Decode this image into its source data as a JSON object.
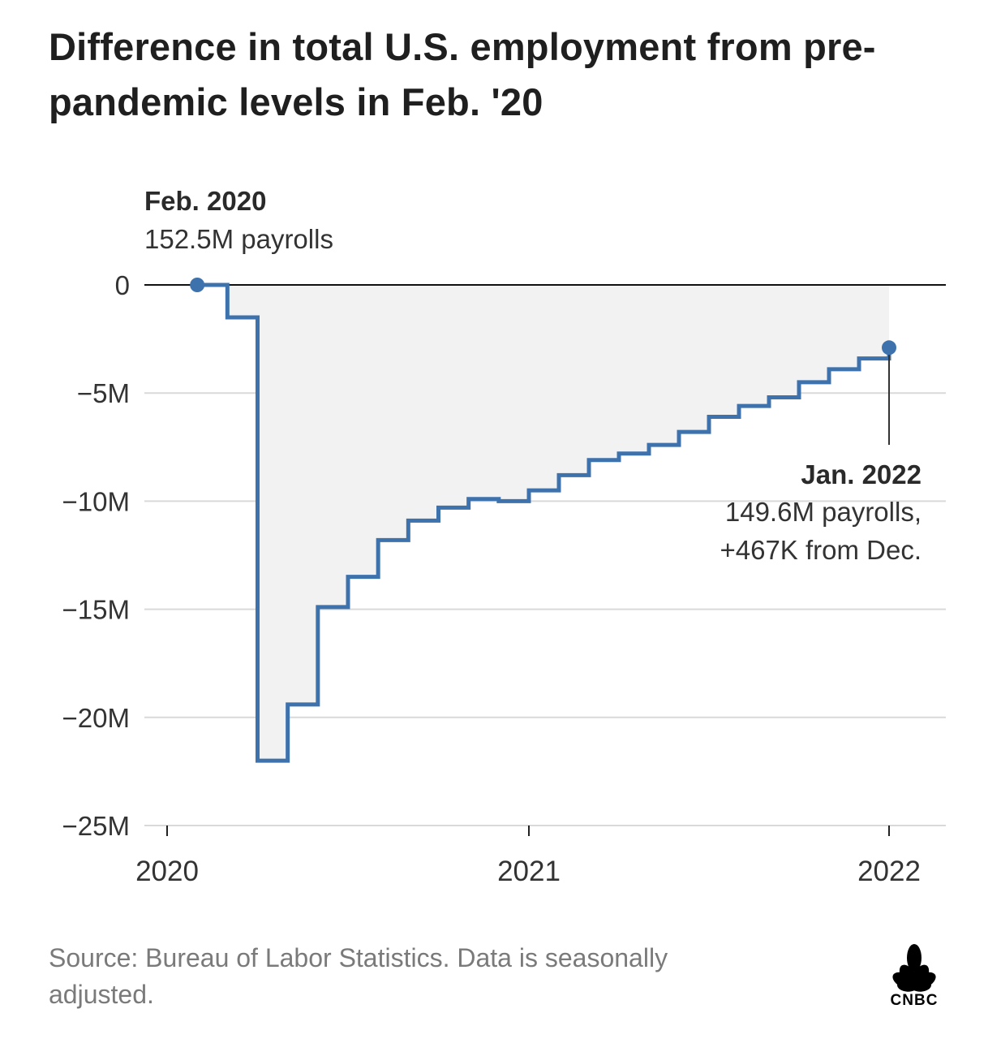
{
  "chart_data": {
    "type": "line",
    "title": "Difference in total U.S. employment from pre-pandemic levels in Feb. '20",
    "step": true,
    "x_ticks": [
      "2020",
      "2021",
      "2022"
    ],
    "y_ticks": [
      0,
      -5,
      -10,
      -15,
      -20,
      -25
    ],
    "y_tick_labels": [
      "0",
      "−5M",
      "−10M",
      "−15M",
      "−20M",
      "−25M"
    ],
    "ylim": [
      -25,
      0
    ],
    "x_unit": "months since Jan 2020",
    "grid": true,
    "series": [
      {
        "x": [
          "2020-02",
          "2020-03",
          "2020-04",
          "2020-05",
          "2020-06",
          "2020-07",
          "2020-08",
          "2020-09",
          "2020-10",
          "2020-11",
          "2020-12",
          "2021-01",
          "2021-02",
          "2021-03",
          "2021-04",
          "2021-05",
          "2021-06",
          "2021-07",
          "2021-08",
          "2021-09",
          "2021-10",
          "2021-11",
          "2021-12",
          "2022-01"
        ],
        "values": [
          0,
          -1.5,
          -22.0,
          -19.4,
          -14.9,
          -13.5,
          -11.8,
          -10.9,
          -10.3,
          -9.9,
          -10.0,
          -9.5,
          -8.8,
          -8.1,
          -7.8,
          -7.4,
          -6.8,
          -6.1,
          -5.6,
          -5.2,
          -4.5,
          -3.9,
          -3.4,
          -2.9
        ],
        "color": "#3e72ad"
      }
    ],
    "annotations": [
      {
        "title": "Feb. 2020",
        "text": "152.5M payrolls"
      },
      {
        "title": "Jan. 2022",
        "line1": "149.6M payrolls,",
        "line2": "+467K from Dec."
      }
    ],
    "colors": {
      "line": "#3e72ad",
      "fill": "#f2f2f2",
      "grid": "#d9d9d9",
      "zero": "#111111"
    }
  },
  "footer": {
    "source": "Source: Bureau of Labor Statistics. Data is seasonally adjusted."
  },
  "logo": {
    "text": "CNBC"
  }
}
